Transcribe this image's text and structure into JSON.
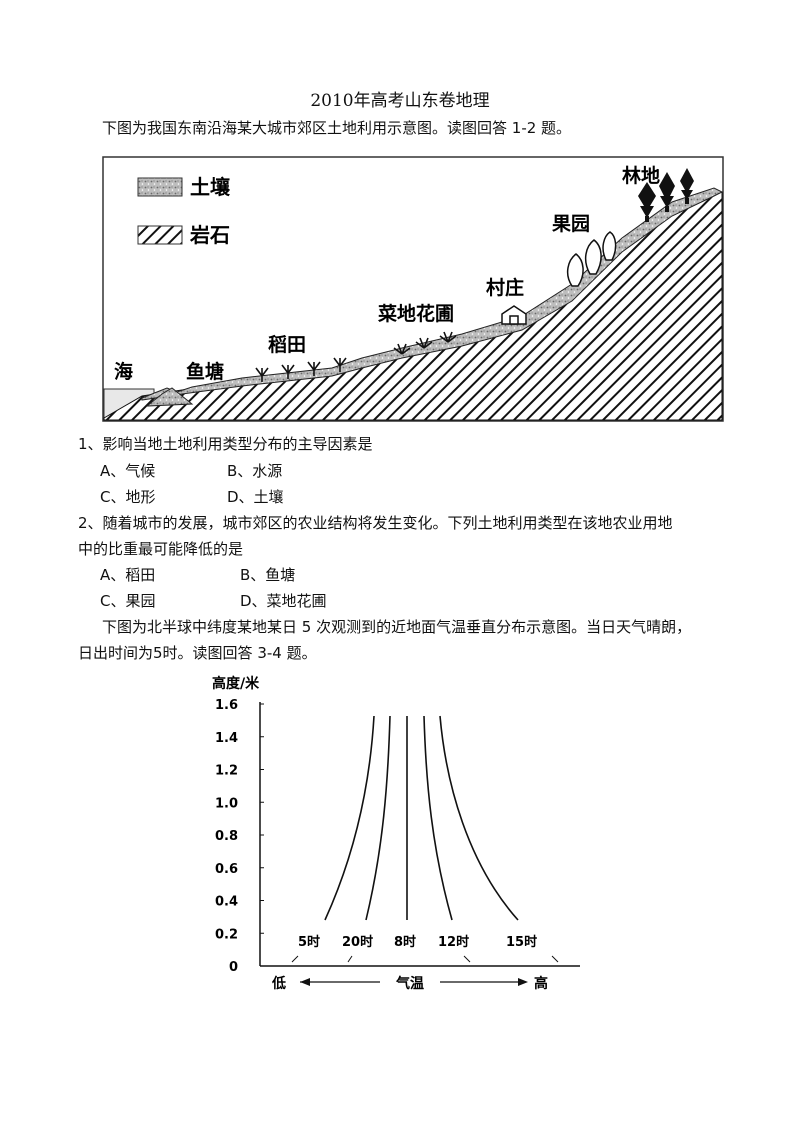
{
  "doc": {
    "title": "2010年高考山东卷地理",
    "intro1": "下图为我国东南沿海某大城市郊区土地利用示意图。读图回答 1-2 题。",
    "q1": {
      "stem": "1、影响当地土地利用类型分布的主导因素是",
      "a": "A、气候",
      "b": "B、水源",
      "c": "C、地形",
      "d": "D、土壤"
    },
    "q2": {
      "stem_line1": "2、随着城市的发展，城市郊区的农业结构将发生变化。下列土地利用类型在该地农业用地",
      "stem_line2": "中的比重最可能降低的是",
      "a": "A、稻田",
      "b": "B、鱼塘",
      "c": "C、果园",
      "d": "D、菜地花圃"
    },
    "intro2_line1": "下图为北半球中纬度某地某日 5 次观测到的近地面气温垂直分布示意图。当日天气晴朗，",
    "intro2_line2": "日出时间为5时。读图回答 3-4 题。"
  },
  "landuse_figure": {
    "legend": {
      "soil": "土壤",
      "rock": "岩石"
    },
    "labels": {
      "sea": "海",
      "fishpond": "鱼塘",
      "paddy": "稻田",
      "vegetable": "菜地花圃",
      "village": "村庄",
      "orchard": "果园",
      "forest": "林地"
    }
  },
  "chart_data": {
    "type": "line",
    "ylabel": "高度/米",
    "xlabel": "气温",
    "x_low_label": "低",
    "x_high_label": "高",
    "y_ticks": [
      "1.6",
      "1.4",
      "1.2",
      "1.0",
      "0.8",
      "0.6",
      "0.4",
      "0.2",
      "0"
    ],
    "ylim": [
      0,
      1.6
    ],
    "series": [
      {
        "name": "5时"
      },
      {
        "name": "20时"
      },
      {
        "name": "8时"
      },
      {
        "name": "12时"
      },
      {
        "name": "15时"
      }
    ]
  }
}
